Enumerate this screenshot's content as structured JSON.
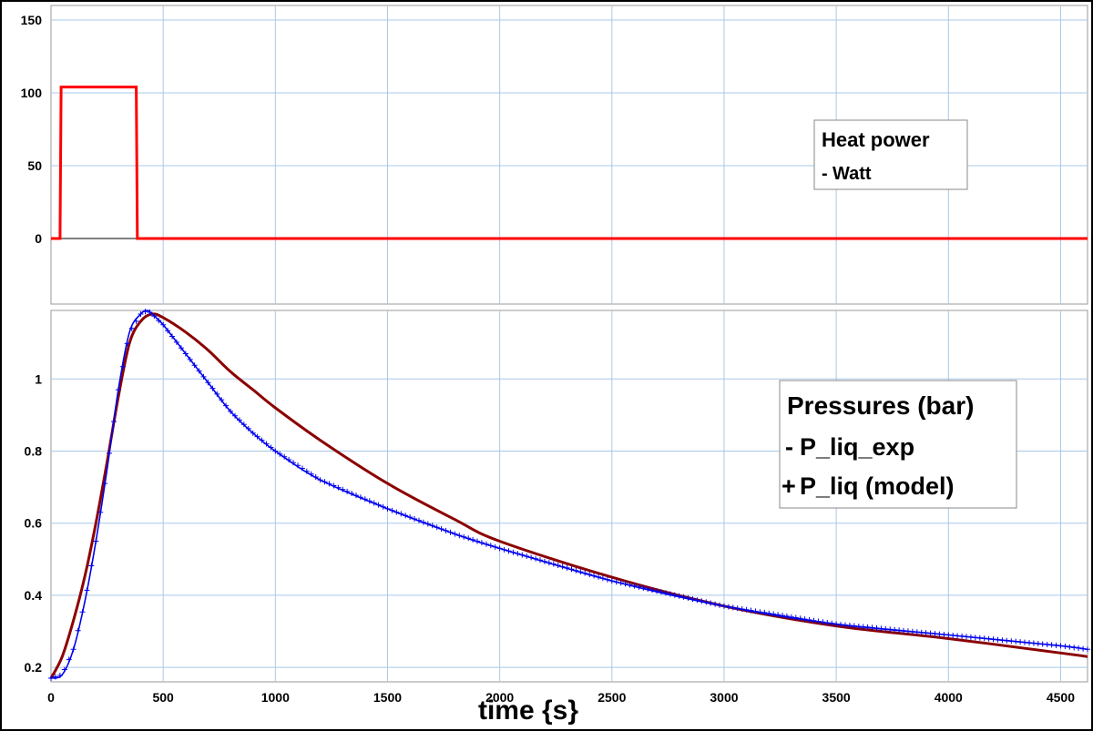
{
  "colors": {
    "grid": "#a8c8e8",
    "heat": "#ff0000",
    "exp": "#8b0000",
    "model": "#0000ee",
    "baseline": "#000000"
  },
  "chart_data": [
    {
      "type": "line",
      "panel": "top",
      "legend": {
        "title": "Heat power",
        "placement": "right",
        "entries": [
          {
            "name": "Watt",
            "marker": "-"
          }
        ]
      },
      "xlim": [
        0,
        4620
      ],
      "ylim": [
        -45,
        160
      ],
      "yticks": [
        0,
        50,
        100,
        150
      ],
      "ytick_labels": [
        "0",
        "50",
        "100",
        "150"
      ],
      "grid": true,
      "series": [
        {
          "name": "Watt",
          "x": [
            0,
            40,
            45,
            380,
            385,
            4620
          ],
          "y": [
            0,
            0,
            104,
            104,
            0,
            0
          ]
        }
      ]
    },
    {
      "type": "line",
      "panel": "bottom",
      "legend": {
        "title": "Pressures (bar)",
        "placement": "right",
        "entries": [
          {
            "name": "P_liq_exp",
            "marker": "-"
          },
          {
            "name": "P_liq (model)",
            "marker": "+"
          }
        ]
      },
      "xlabel": "time {s}",
      "xlim": [
        0,
        4620
      ],
      "xticks": [
        0,
        500,
        1000,
        1500,
        2000,
        2500,
        3000,
        3500,
        4000,
        4500
      ],
      "xtick_labels": [
        "0",
        "500",
        "1000",
        "1500",
        "2000",
        "2500",
        "3000",
        "3500",
        "4000",
        "4500"
      ],
      "ylim": [
        0.16,
        1.19
      ],
      "yticks": [
        0.2,
        0.4,
        0.6,
        0.8,
        1.0
      ],
      "ytick_labels": [
        "0.2",
        "0.4",
        "0.6",
        "0.8",
        "1"
      ],
      "grid": true,
      "series": [
        {
          "name": "P_liq_exp",
          "x": [
            0,
            50,
            100,
            150,
            200,
            250,
            300,
            350,
            400,
            450,
            500,
            600,
            700,
            800,
            900,
            1000,
            1200,
            1500,
            1800,
            2000,
            2500,
            3000,
            3500,
            4000,
            4500,
            4620
          ],
          "y": [
            0.17,
            0.23,
            0.33,
            0.45,
            0.6,
            0.77,
            0.95,
            1.1,
            1.16,
            1.18,
            1.17,
            1.13,
            1.08,
            1.02,
            0.97,
            0.92,
            0.83,
            0.71,
            0.61,
            0.55,
            0.45,
            0.37,
            0.315,
            0.28,
            0.24,
            0.23
          ]
        },
        {
          "name": "P_liq (model)",
          "x": [
            0,
            50,
            100,
            150,
            200,
            250,
            300,
            350,
            400,
            430,
            450,
            500,
            600,
            700,
            800,
            900,
            1000,
            1200,
            1500,
            1800,
            2000,
            2500,
            3000,
            3500,
            4000,
            4500,
            4620
          ],
          "y": [
            0.17,
            0.18,
            0.25,
            0.38,
            0.55,
            0.75,
            0.97,
            1.13,
            1.18,
            1.19,
            1.18,
            1.15,
            1.07,
            0.99,
            0.91,
            0.85,
            0.8,
            0.72,
            0.64,
            0.57,
            0.53,
            0.44,
            0.37,
            0.32,
            0.29,
            0.26,
            0.25
          ]
        }
      ]
    }
  ]
}
